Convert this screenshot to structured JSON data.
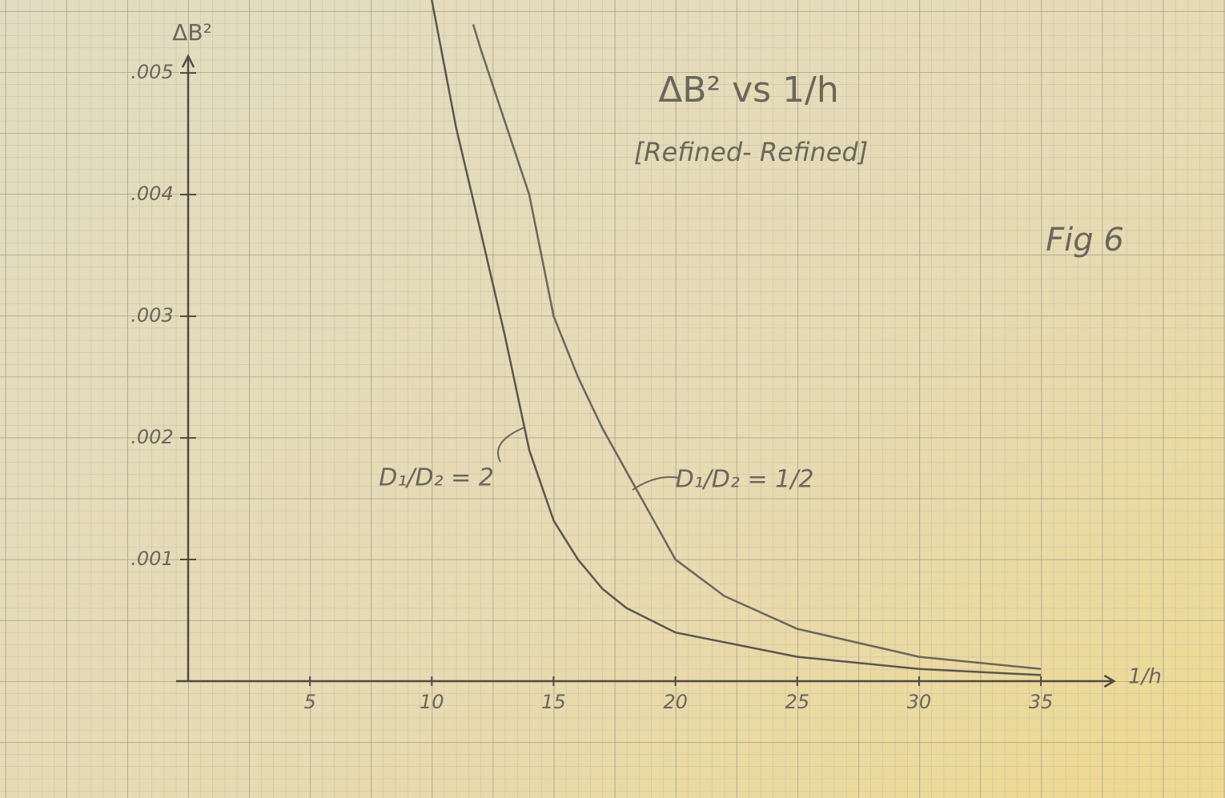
{
  "chart_data": {
    "type": "line",
    "title": "ΔB² vs 1/h",
    "subtitle": "[Refined- Refined]",
    "annotation": "Fig 6",
    "x_label": "1/h",
    "y_label": "ΔB²",
    "series": [
      {
        "name": "D₁/D₂ = 2",
        "color": "#5a5650",
        "x": [
          10,
          11,
          12,
          13,
          14,
          15,
          16,
          17,
          18,
          20,
          25,
          30,
          35
        ],
        "values": [
          0.0056,
          0.00455,
          0.0037,
          0.00284,
          0.0019,
          0.00132,
          0.001,
          0.00076,
          0.0006,
          0.0004,
          0.0002,
          0.0001,
          5e-05
        ]
      },
      {
        "name": "D₁/D₂ = 1/2",
        "color": "#6a665e",
        "x": [
          11.7,
          12,
          13,
          14,
          15,
          16,
          17,
          18,
          19,
          20,
          22,
          25,
          30,
          35
        ],
        "values": [
          0.0054,
          0.0052,
          0.0046,
          0.004,
          0.003,
          0.0025,
          0.00208,
          0.00172,
          0.00136,
          0.001,
          0.0007,
          0.00043,
          0.0002,
          0.0001
        ]
      }
    ],
    "xlim": [
      0,
      38
    ],
    "ylim": [
      0,
      0.0056
    ],
    "xticks": [
      5,
      10,
      15,
      20,
      25,
      30,
      35
    ],
    "yticks": [
      {
        "value": 0.001,
        "label": ".001"
      },
      {
        "value": 0.002,
        "label": ".002"
      },
      {
        "value": 0.003,
        "label": ".003"
      },
      {
        "value": 0.004,
        "label": ".004"
      },
      {
        "value": 0.005,
        "label": ".005"
      }
    ]
  }
}
